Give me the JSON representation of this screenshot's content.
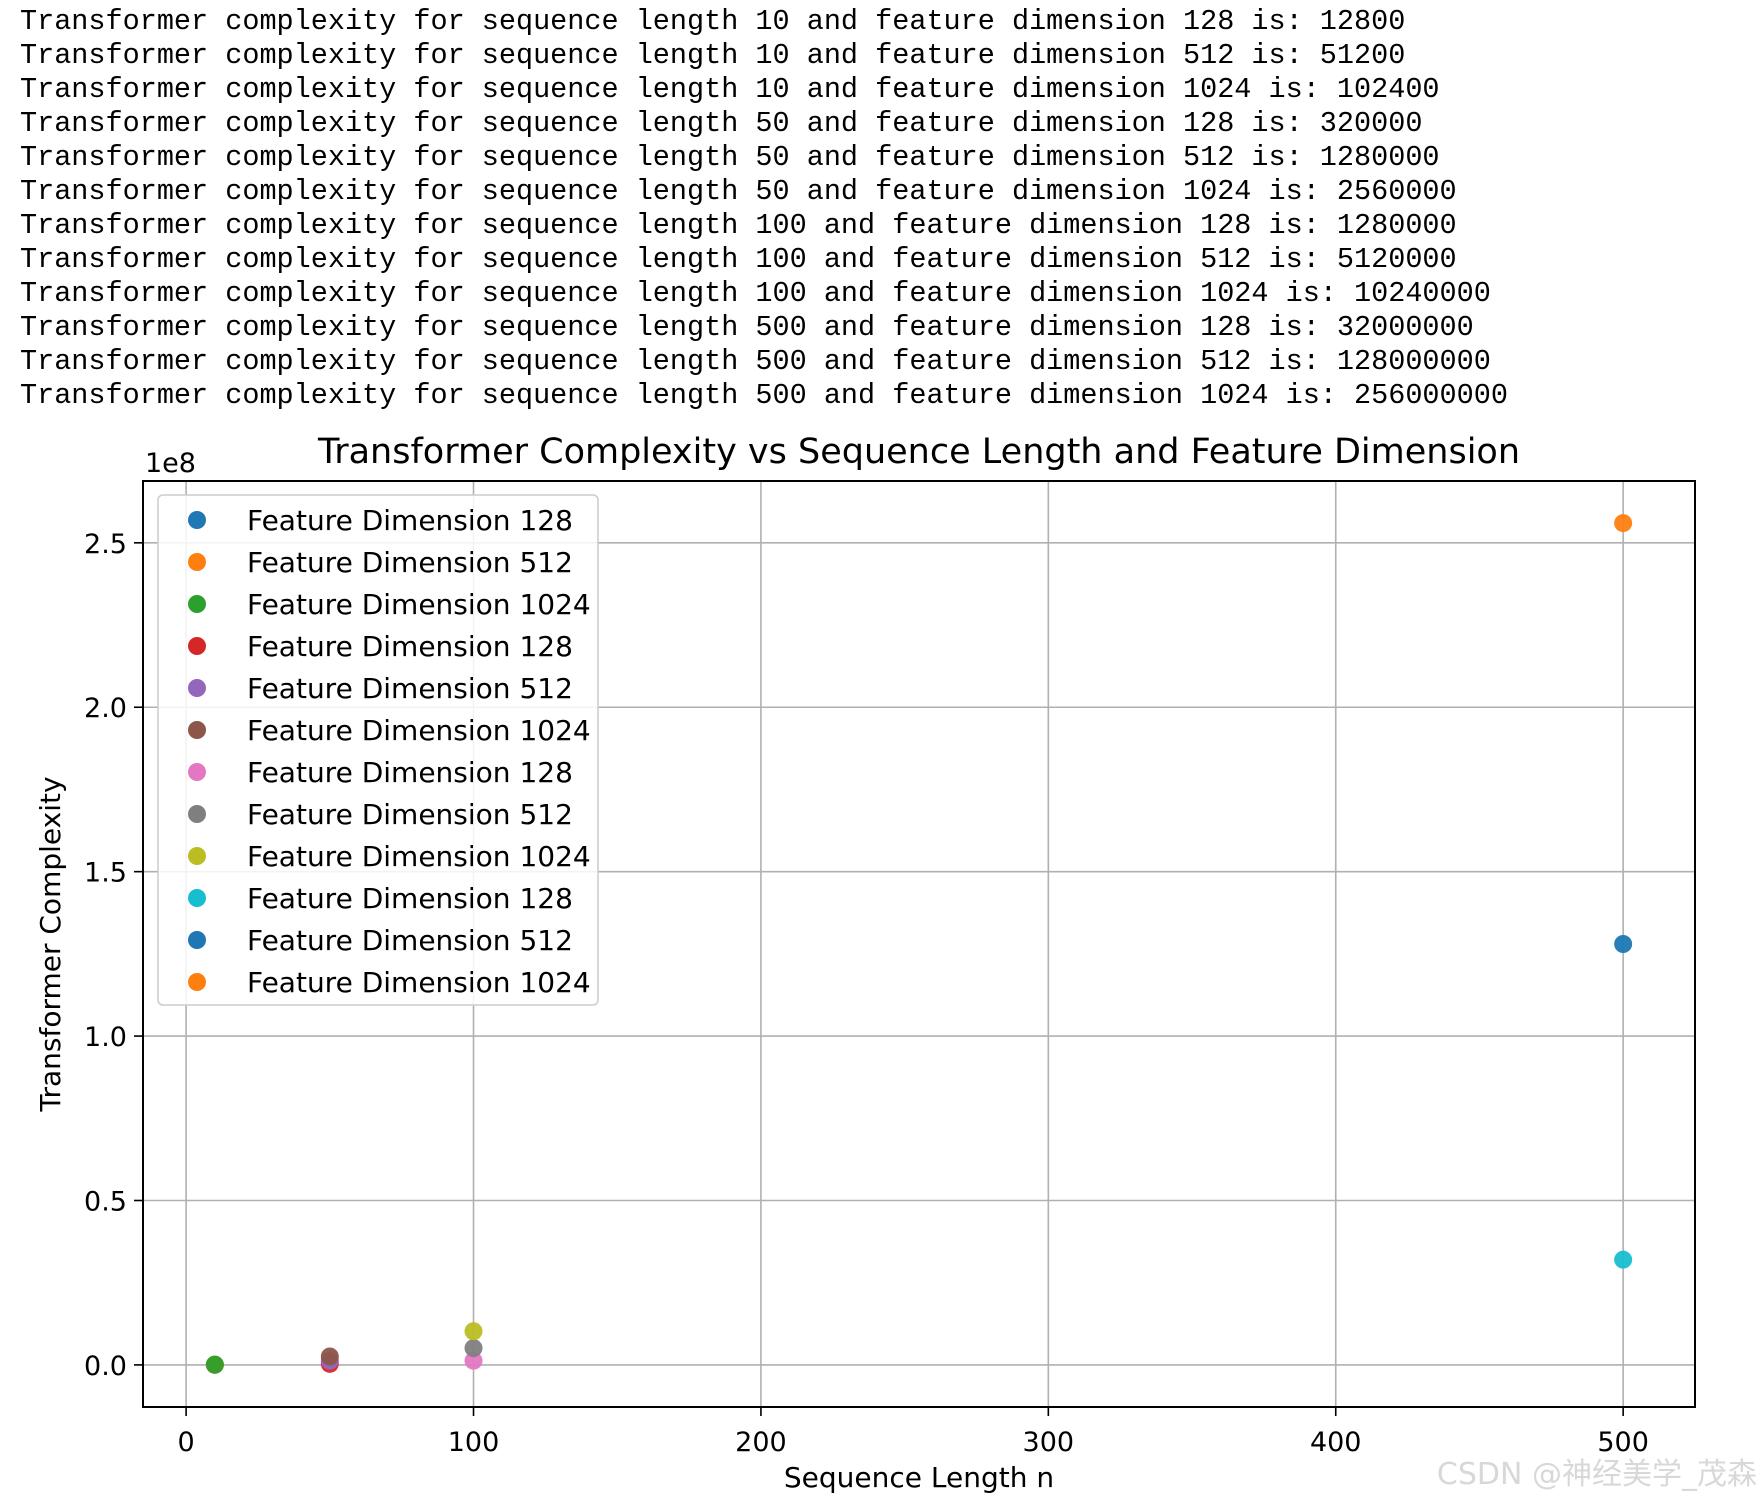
{
  "console_output": [
    "Transformer complexity for sequence length 10 and feature dimension 128 is: 12800",
    "Transformer complexity for sequence length 10 and feature dimension 512 is: 51200",
    "Transformer complexity for sequence length 10 and feature dimension 1024 is: 102400",
    "Transformer complexity for sequence length 50 and feature dimension 128 is: 320000",
    "Transformer complexity for sequence length 50 and feature dimension 512 is: 1280000",
    "Transformer complexity for sequence length 50 and feature dimension 1024 is: 2560000",
    "Transformer complexity for sequence length 100 and feature dimension 128 is: 1280000",
    "Transformer complexity for sequence length 100 and feature dimension 512 is: 5120000",
    "Transformer complexity for sequence length 100 and feature dimension 1024 is: 10240000",
    "Transformer complexity for sequence length 500 and feature dimension 128 is: 32000000",
    "Transformer complexity for sequence length 500 and feature dimension 512 is: 128000000",
    "Transformer complexity for sequence length 500 and feature dimension 1024 is: 256000000"
  ],
  "watermark": "CSDN @神经美学_茂森",
  "chart_data": {
    "type": "scatter",
    "title": "Transformer Complexity vs Sequence Length and Feature Dimension",
    "xlabel": "Sequence Length n",
    "ylabel": "Transformer Complexity",
    "y_offset_label": "1e8",
    "xlim": [
      -15,
      525
    ],
    "ylim": [
      -12800000,
      268800000
    ],
    "x_ticks": [
      0,
      100,
      200,
      300,
      400,
      500
    ],
    "x_tick_labels": [
      "0",
      "100",
      "200",
      "300",
      "400",
      "500"
    ],
    "y_ticks": [
      0,
      50000000,
      100000000,
      150000000,
      200000000,
      250000000
    ],
    "y_tick_labels": [
      "0.0",
      "0.5",
      "1.0",
      "1.5",
      "2.0",
      "2.5"
    ],
    "grid": true,
    "legend_position": "top-left",
    "series": [
      {
        "name": "Feature Dimension 128",
        "color": "#1f77b4",
        "x": 10,
        "y": 12800
      },
      {
        "name": "Feature Dimension 512",
        "color": "#ff7f0e",
        "x": 10,
        "y": 51200
      },
      {
        "name": "Feature Dimension 1024",
        "color": "#2ca02c",
        "x": 10,
        "y": 102400
      },
      {
        "name": "Feature Dimension 128",
        "color": "#d62728",
        "x": 50,
        "y": 320000
      },
      {
        "name": "Feature Dimension 512",
        "color": "#9467bd",
        "x": 50,
        "y": 1280000
      },
      {
        "name": "Feature Dimension 1024",
        "color": "#8c564b",
        "x": 50,
        "y": 2560000
      },
      {
        "name": "Feature Dimension 128",
        "color": "#e377c2",
        "x": 100,
        "y": 1280000
      },
      {
        "name": "Feature Dimension 512",
        "color": "#7f7f7f",
        "x": 100,
        "y": 5120000
      },
      {
        "name": "Feature Dimension 1024",
        "color": "#bcbd22",
        "x": 100,
        "y": 10240000
      },
      {
        "name": "Feature Dimension 128",
        "color": "#17becf",
        "x": 500,
        "y": 32000000
      },
      {
        "name": "Feature Dimension 512",
        "color": "#1f77b4",
        "x": 500,
        "y": 128000000
      },
      {
        "name": "Feature Dimension 1024",
        "color": "#ff7f0e",
        "x": 500,
        "y": 256000000
      }
    ]
  }
}
